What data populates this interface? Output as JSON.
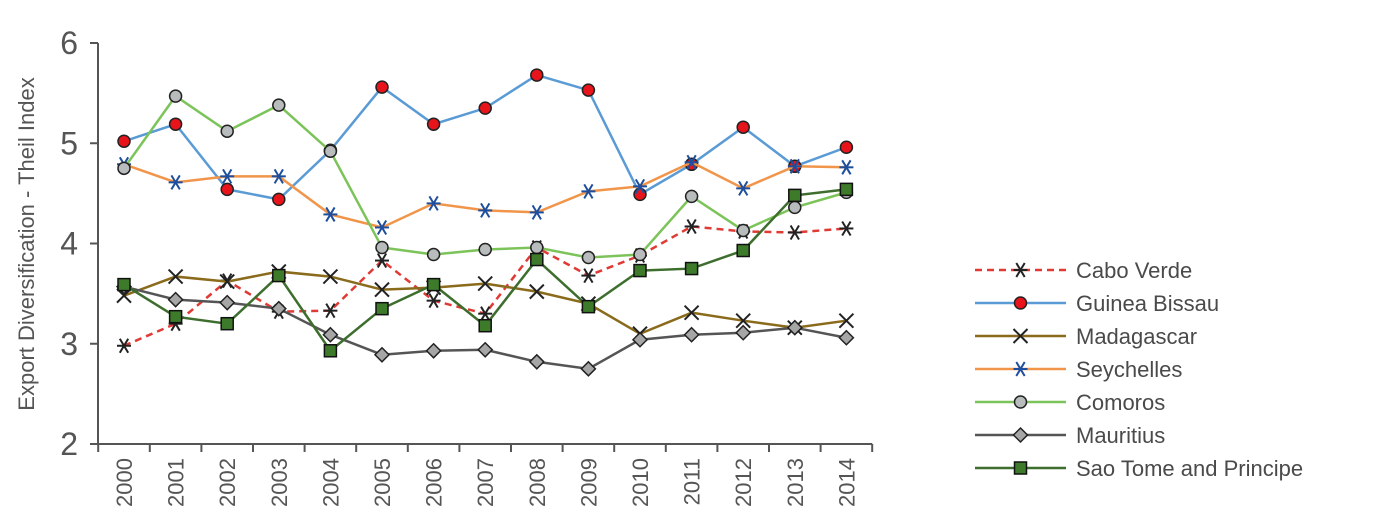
{
  "chart_data": {
    "type": "line",
    "title": "",
    "xlabel": "",
    "ylabel": "Export Diversification - Theil Index",
    "ylim": [
      2,
      6
    ],
    "yticks": [
      "2",
      "3",
      "4",
      "5",
      "6"
    ],
    "categories": [
      "2000",
      "2001",
      "2002",
      "2003",
      "2004",
      "2005",
      "2006",
      "2007",
      "2008",
      "2009",
      "2010",
      "2011",
      "2012",
      "2013",
      "2014"
    ],
    "grid": false,
    "legend_position": "right",
    "series": [
      {
        "name": "Cabo Verde",
        "color": "#e03a35",
        "dash": true,
        "marker": "asterisk",
        "values": [
          2.98,
          3.2,
          3.63,
          3.32,
          3.33,
          3.83,
          3.43,
          3.3,
          3.96,
          3.68,
          3.88,
          4.17,
          4.12,
          4.11,
          4.15
        ]
      },
      {
        "name": "Guinea Bissau",
        "color": "#5b9bd5",
        "marker": "circle-red",
        "values": [
          5.02,
          5.19,
          4.54,
          4.44,
          4.93,
          5.56,
          5.19,
          5.35,
          5.68,
          5.53,
          4.49,
          4.79,
          5.16,
          4.77,
          4.96
        ]
      },
      {
        "name": "Madagascar",
        "color": "#8a6a1b",
        "marker": "x",
        "values": [
          3.48,
          3.67,
          3.62,
          3.72,
          3.67,
          3.54,
          3.56,
          3.6,
          3.52,
          3.4,
          3.1,
          3.31,
          3.23,
          3.16,
          3.23
        ]
      },
      {
        "name": "Seychelles",
        "color": "#f0954a",
        "marker": "asterisk-blue",
        "values": [
          4.79,
          4.61,
          4.67,
          4.67,
          4.29,
          4.16,
          4.4,
          4.33,
          4.31,
          4.52,
          4.57,
          4.81,
          4.55,
          4.77,
          4.76
        ]
      },
      {
        "name": "Comoros",
        "color": "#7cc35a",
        "marker": "circle-grey",
        "values": [
          4.75,
          5.47,
          5.12,
          5.38,
          4.92,
          3.96,
          3.89,
          3.94,
          3.96,
          3.86,
          3.89,
          4.47,
          4.13,
          4.36,
          4.51
        ]
      },
      {
        "name": "Mauritius",
        "color": "#555555",
        "marker": "diamond",
        "values": [
          3.57,
          3.44,
          3.41,
          3.35,
          3.09,
          2.89,
          2.93,
          2.94,
          2.82,
          2.75,
          3.04,
          3.09,
          3.11,
          3.16,
          3.06
        ]
      },
      {
        "name": "Sao Tome and Principe",
        "color": "#3e6e2e",
        "marker": "square",
        "values": [
          3.59,
          3.27,
          3.2,
          3.68,
          2.93,
          3.35,
          3.59,
          3.18,
          3.84,
          3.37,
          3.73,
          3.75,
          3.93,
          4.48,
          4.54
        ]
      }
    ]
  }
}
